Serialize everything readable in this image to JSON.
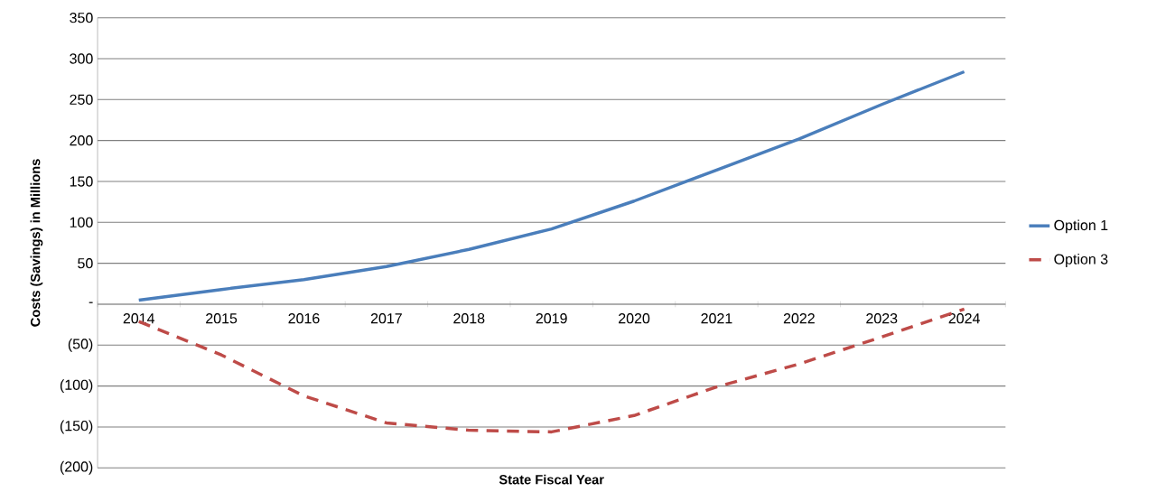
{
  "chart_data": {
    "type": "line",
    "xlabel": "State Fiscal Year",
    "ylabel": "Costs (Savings) in Millions",
    "categories": [
      "2014",
      "2015",
      "2016",
      "2017",
      "2018",
      "2019",
      "2020",
      "2021",
      "2022",
      "2023",
      "2024"
    ],
    "series": [
      {
        "name": "Option 1",
        "color": "#4a7ebb",
        "line_style": "solid",
        "values": [
          5,
          18,
          30,
          46,
          67,
          92,
          126,
          164,
          202,
          244,
          284
        ]
      },
      {
        "name": "Option 3",
        "color": "#be4b48",
        "line_style": "dashed",
        "values": [
          -21,
          -62,
          -112,
          -145,
          -154,
          -156,
          -136,
          -101,
          -73,
          -40,
          -6
        ]
      }
    ],
    "ylim": [
      -200,
      350
    ],
    "yticks": [
      {
        "value": -200,
        "label": "(200)"
      },
      {
        "value": -150,
        "label": "(150)"
      },
      {
        "value": -100,
        "label": "(100)"
      },
      {
        "value": -50,
        "label": "(50)"
      },
      {
        "value": 0,
        "label": "-"
      },
      50,
      100,
      150,
      200,
      250,
      300,
      350
    ],
    "grid": "y",
    "legend": "right",
    "marker": "none"
  }
}
